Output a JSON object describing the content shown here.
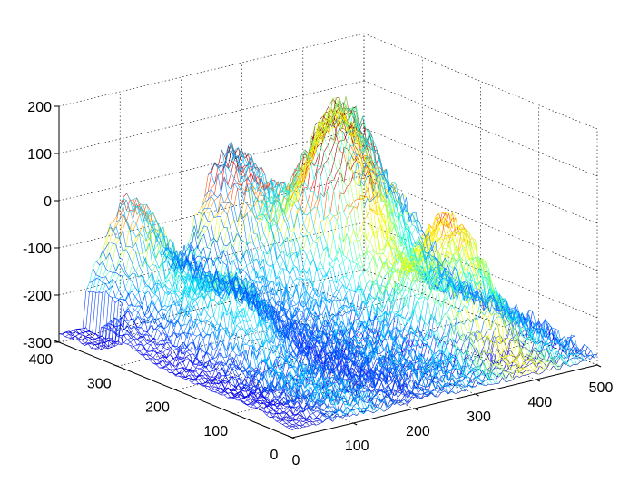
{
  "chart_data": {
    "type": "surface",
    "title": "",
    "xlabel": "",
    "ylabel": "",
    "zlabel": "",
    "xlim": [
      0,
      500
    ],
    "ylim": [
      0,
      400
    ],
    "zlim": [
      -300,
      200
    ],
    "x_ticks": [
      "0",
      "100",
      "200",
      "300",
      "400",
      "500"
    ],
    "y_ticks": [
      "0",
      "100",
      "200",
      "300",
      "400"
    ],
    "z_ticks": [
      "200",
      "100",
      "0",
      "-100",
      "-200",
      "-300"
    ],
    "grid": true,
    "colormap": "jet",
    "peaks": [
      {
        "x": 270,
        "y": 390,
        "z": 10
      },
      {
        "x": 440,
        "y": 380,
        "z": 30
      },
      {
        "x": 370,
        "y": 310,
        "z": 40
      },
      {
        "x": 400,
        "y": 150,
        "z": -10
      },
      {
        "x": 110,
        "y": 400,
        "z": -30
      },
      {
        "x": 130,
        "y": 240,
        "z": -130
      }
    ]
  }
}
